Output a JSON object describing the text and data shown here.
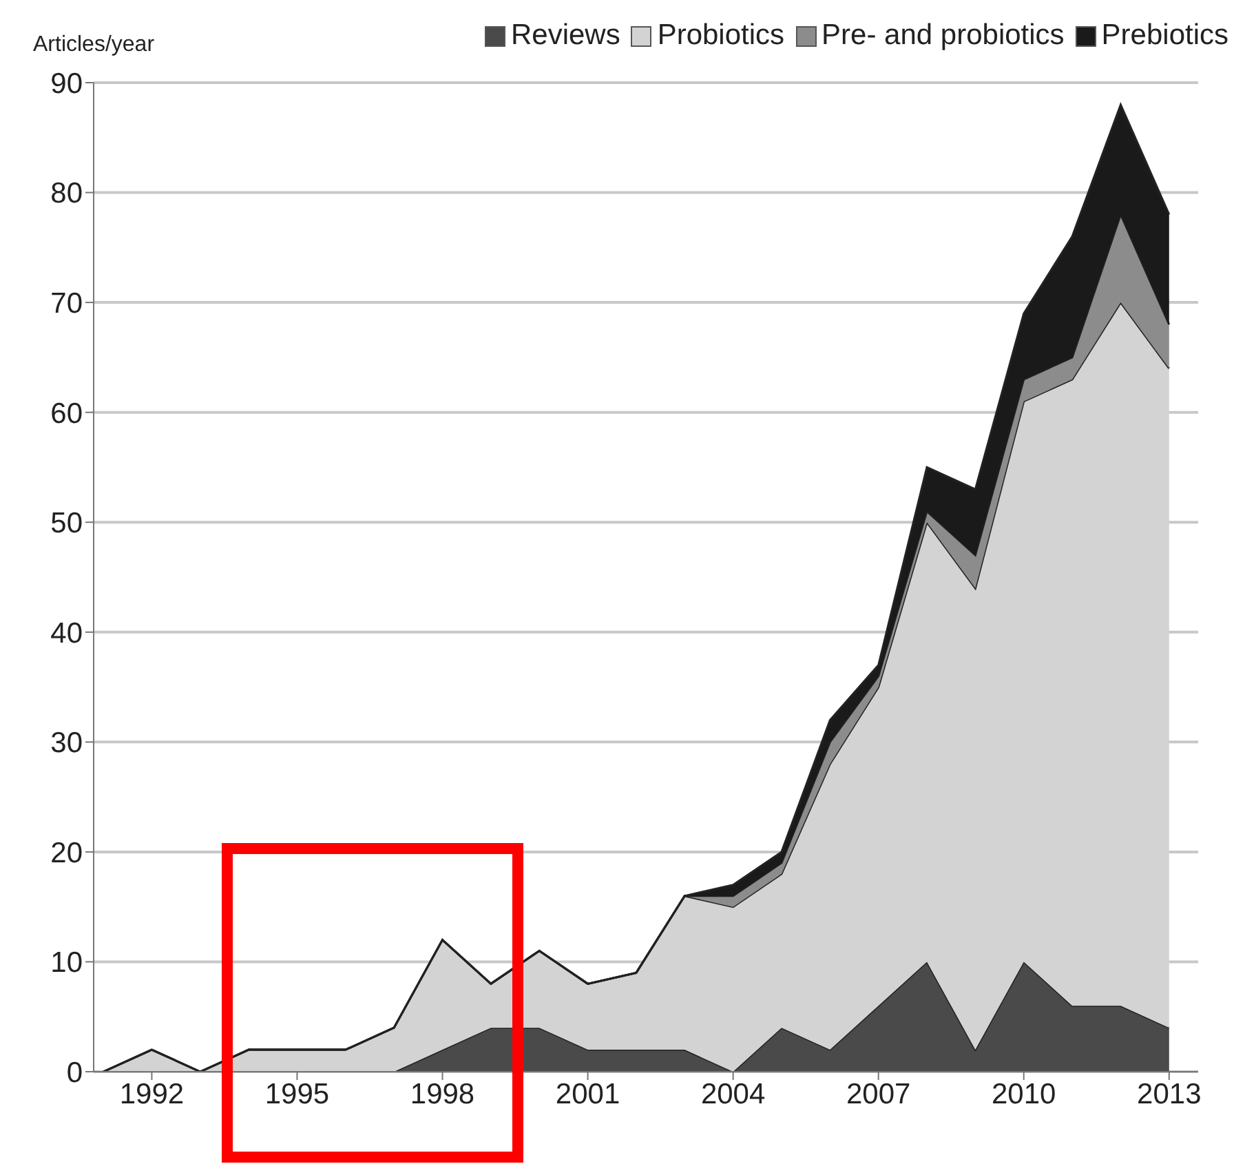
{
  "chart_data": {
    "type": "area",
    "stacked": true,
    "ylabel": "Articles/year",
    "x": [
      1991,
      1992,
      1993,
      1994,
      1995,
      1996,
      1997,
      1998,
      1999,
      2000,
      2001,
      2002,
      2003,
      2004,
      2005,
      2006,
      2007,
      2008,
      2009,
      2010,
      2011,
      2012,
      2013
    ],
    "series": [
      {
        "name": "Reviews",
        "color": "#4a4a4a",
        "values": [
          0,
          0,
          0,
          0,
          0,
          0,
          0,
          2,
          4,
          4,
          2,
          2,
          2,
          0,
          4,
          2,
          6,
          10,
          2,
          10,
          6,
          6,
          4
        ]
      },
      {
        "name": "Probiotics",
        "color": "#d3d3d3",
        "values": [
          0,
          2,
          0,
          2,
          2,
          2,
          4,
          10,
          4,
          7,
          6,
          7,
          14,
          15,
          14,
          26,
          29,
          40,
          42,
          51,
          57,
          64,
          60
        ]
      },
      {
        "name": "Pre- and probiotics",
        "color": "#8c8c8c",
        "values": [
          0,
          0,
          0,
          0,
          0,
          0,
          0,
          0,
          0,
          0,
          0,
          0,
          0,
          1,
          1,
          2,
          1,
          1,
          3,
          2,
          2,
          8,
          4
        ]
      },
      {
        "name": "Prebiotics",
        "color": "#1a1a1a",
        "values": [
          0,
          0,
          0,
          0,
          0,
          0,
          0,
          0,
          0,
          0,
          0,
          0,
          0,
          1,
          1,
          2,
          1,
          4,
          6,
          6,
          11,
          10,
          10
        ]
      }
    ],
    "xlim": [
      1990.8,
      2013.6
    ],
    "xticks": [
      1992,
      1995,
      1998,
      2001,
      2004,
      2007,
      2010,
      2013
    ],
    "ylim": [
      0,
      90
    ],
    "yticks": [
      0,
      10,
      20,
      30,
      40,
      50,
      60,
      70,
      80,
      90
    ],
    "grid": "y",
    "legend": "top right"
  }
}
